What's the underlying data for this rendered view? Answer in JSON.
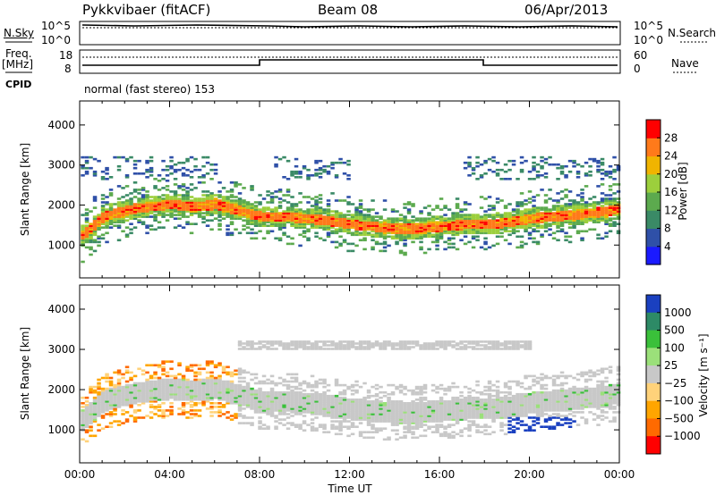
{
  "header": {
    "radar": "Pykkvibaer (fitACF)",
    "beam": "Beam 08",
    "date": "06/Apr/2013"
  },
  "top_panels": {
    "nsky_label": "N.Sky",
    "nsky_ticks": [
      "10^5",
      "10^0"
    ],
    "nsearch_label": "N.Search",
    "nsearch_ticks": [
      "10^5",
      "10^0"
    ],
    "freq_label": "Freq.",
    "freq_unit": "[MHz]",
    "freq_ticks": [
      "18",
      "8"
    ],
    "nave_label": "Nave",
    "nave_ticks": [
      "60",
      "0"
    ],
    "cpid_label": "CPID",
    "cpid_text": "normal (fast stereo) 153"
  },
  "chart_data": [
    {
      "type": "heatmap",
      "name": "power-panel",
      "ylabel": "Slant Range [km]",
      "ylim": [
        180,
        4600
      ],
      "yticks": [
        1000,
        2000,
        3000,
        4000
      ],
      "xlim": [
        0,
        24
      ],
      "colorbar_label": "Power [dB]",
      "colorbar_ticks": [
        "28",
        "24",
        "20",
        "16",
        "12",
        "8",
        "4"
      ],
      "colors": [
        "#1a1aff",
        "#2f50a8",
        "#3a8a66",
        "#5caa4e",
        "#9ccf3c",
        "#f0b400",
        "#ff7a1a",
        "#ff0000"
      ],
      "bands": [
        {
          "x": [
            0,
            1,
            2,
            3,
            4,
            5,
            6,
            7,
            8,
            9,
            10,
            11,
            12,
            13,
            14,
            15,
            16,
            17,
            18,
            19,
            20,
            21,
            22,
            23,
            24
          ],
          "center": [
            1200,
            1700,
            1850,
            1950,
            2000,
            1950,
            2000,
            1850,
            1700,
            1700,
            1650,
            1600,
            1500,
            1450,
            1400,
            1400,
            1450,
            1500,
            1500,
            1550,
            1650,
            1700,
            1750,
            1800,
            1900
          ],
          "core_power": 26,
          "halo_power": 12
        }
      ],
      "scatter_top_km": 3200
    },
    {
      "type": "heatmap",
      "name": "velocity-panel",
      "ylabel": "Slant Range [km]",
      "ylim": [
        180,
        4600
      ],
      "yticks": [
        1000,
        2000,
        3000,
        4000
      ],
      "xlim": [
        0,
        24
      ],
      "xticks": [
        "00:00",
        "04:00",
        "08:00",
        "12:00",
        "16:00",
        "20:00",
        "00:00"
      ],
      "xlabel": "Time UT",
      "colorbar_label": "Velocity [m s⁻¹]",
      "colorbar_ticks": [
        "1000",
        "500",
        "100",
        "25",
        "−25",
        "−100",
        "−500",
        "−1000"
      ],
      "colors": [
        "#ff0000",
        "#ff6a00",
        "#ffa500",
        "#ffd27a",
        "#c8c8c8",
        "#9be07a",
        "#3ac03a",
        "#2d8a66",
        "#1a40c0"
      ]
    }
  ]
}
